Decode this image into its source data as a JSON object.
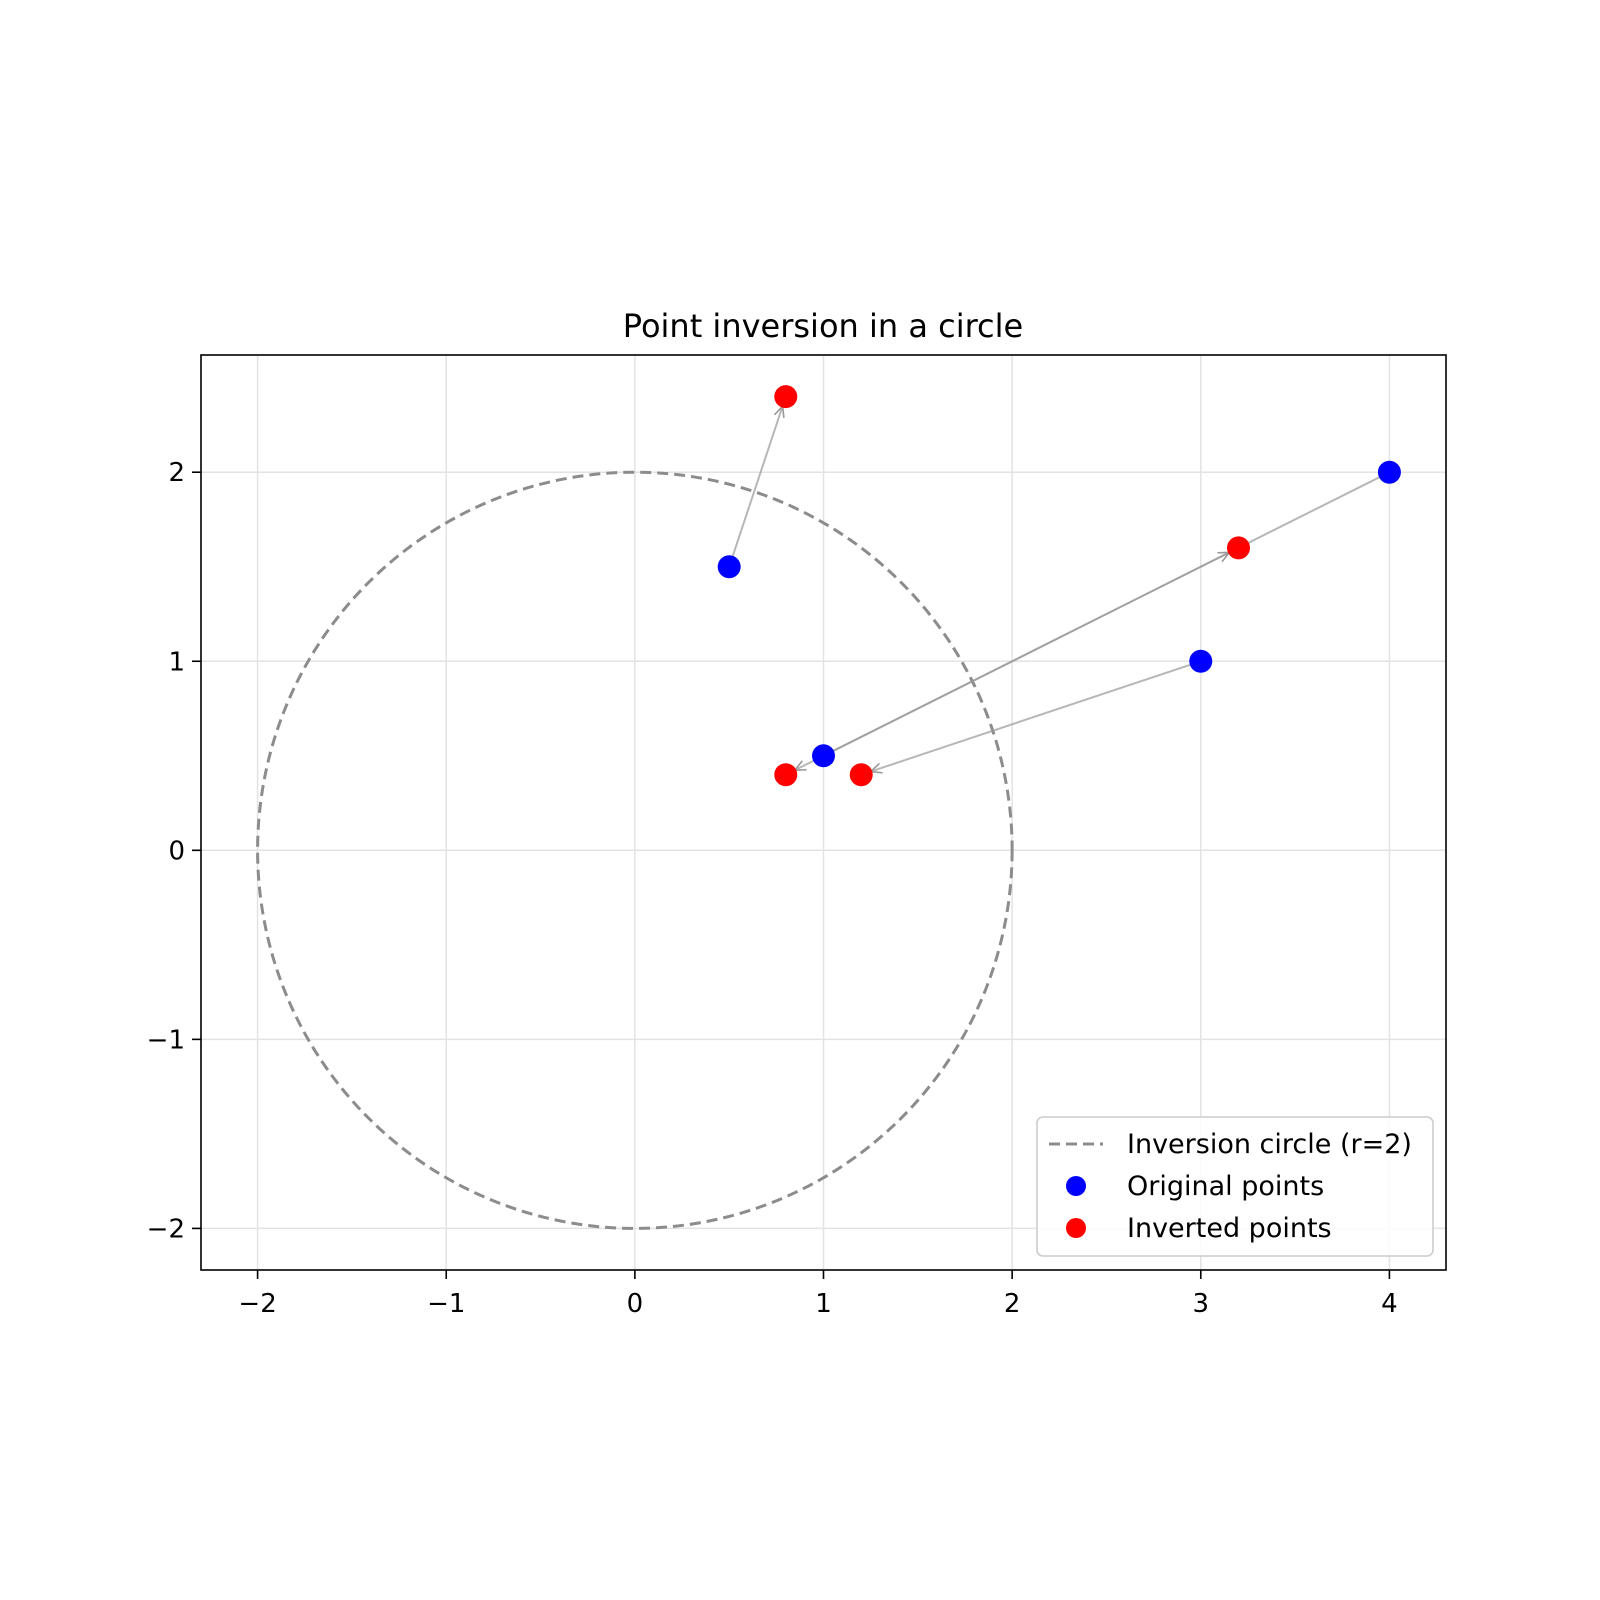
{
  "chart_data": {
    "type": "scatter",
    "title": "Point inversion in a circle",
    "xlabel": "",
    "ylabel": "",
    "xlim": [
      -2.3,
      4.3
    ],
    "ylim": [
      -2.22,
      2.62
    ],
    "xticks": [
      -2,
      -1,
      0,
      1,
      2,
      3,
      4
    ],
    "yticks": [
      -2,
      -1,
      0,
      1,
      2
    ],
    "xtick_labels": [
      "−2",
      "−1",
      "0",
      "1",
      "2",
      "3",
      "4"
    ],
    "ytick_labels": [
      "−2",
      "−1",
      "0",
      "1",
      "2"
    ],
    "grid": true,
    "legend_position": "lower-right",
    "circle": {
      "name": "Inversion circle (r=2)",
      "center": [
        0,
        0
      ],
      "radius": 2,
      "color": "#8c8c8c",
      "style": "dashed"
    },
    "series": [
      {
        "name": "Original points",
        "color": "#0000ff",
        "x": [
          0.5,
          1.0,
          3.0,
          4.0
        ],
        "y": [
          1.5,
          0.5,
          1.0,
          2.0
        ]
      },
      {
        "name": "Inverted points",
        "color": "#ff0000",
        "x": [
          0.8,
          0.8,
          1.2,
          3.2
        ],
        "y": [
          2.4,
          0.4,
          0.4,
          1.6
        ]
      }
    ],
    "arrows": [
      {
        "from": [
          0.5,
          1.5
        ],
        "to": [
          0.8,
          2.4
        ]
      },
      {
        "from": [
          1.0,
          0.5
        ],
        "to": [
          3.2,
          1.6
        ]
      },
      {
        "from": [
          3.0,
          1.0
        ],
        "to": [
          1.2,
          0.4
        ]
      },
      {
        "from": [
          4.0,
          2.0
        ],
        "to": [
          0.8,
          0.4
        ]
      }
    ],
    "arrow_color": "#999999"
  }
}
